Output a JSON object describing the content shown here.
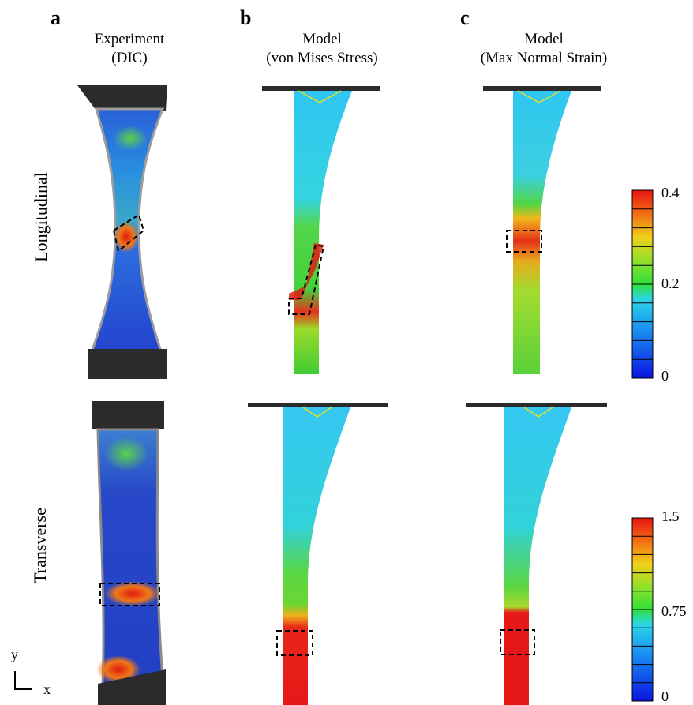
{
  "panels": [
    {
      "letter": "a",
      "title_line1": "Experiment",
      "title_line2": "(DIC)"
    },
    {
      "letter": "b",
      "title_line1": "Model",
      "title_line2": "(von Mises Stress)"
    },
    {
      "letter": "c",
      "title_line1": "Model",
      "title_line2": "(Max Normal Strain)"
    }
  ],
  "rows": [
    {
      "label": "Longitudinal"
    },
    {
      "label": "Transverse"
    }
  ],
  "colorbars": [
    {
      "ticks": [
        "0.4",
        "0.2",
        "0"
      ]
    },
    {
      "ticks": [
        "1.5",
        "0.75",
        "0"
      ]
    }
  ],
  "axes": {
    "y": "y",
    "x": "x"
  },
  "colors": {
    "frame": "#2b2b2b",
    "blue": "#1a3fd6",
    "cyan": "#29c6f0",
    "green": "#3fd12c",
    "yellow": "#e7d21a",
    "orange": "#f06a12",
    "red": "#e01818"
  }
}
